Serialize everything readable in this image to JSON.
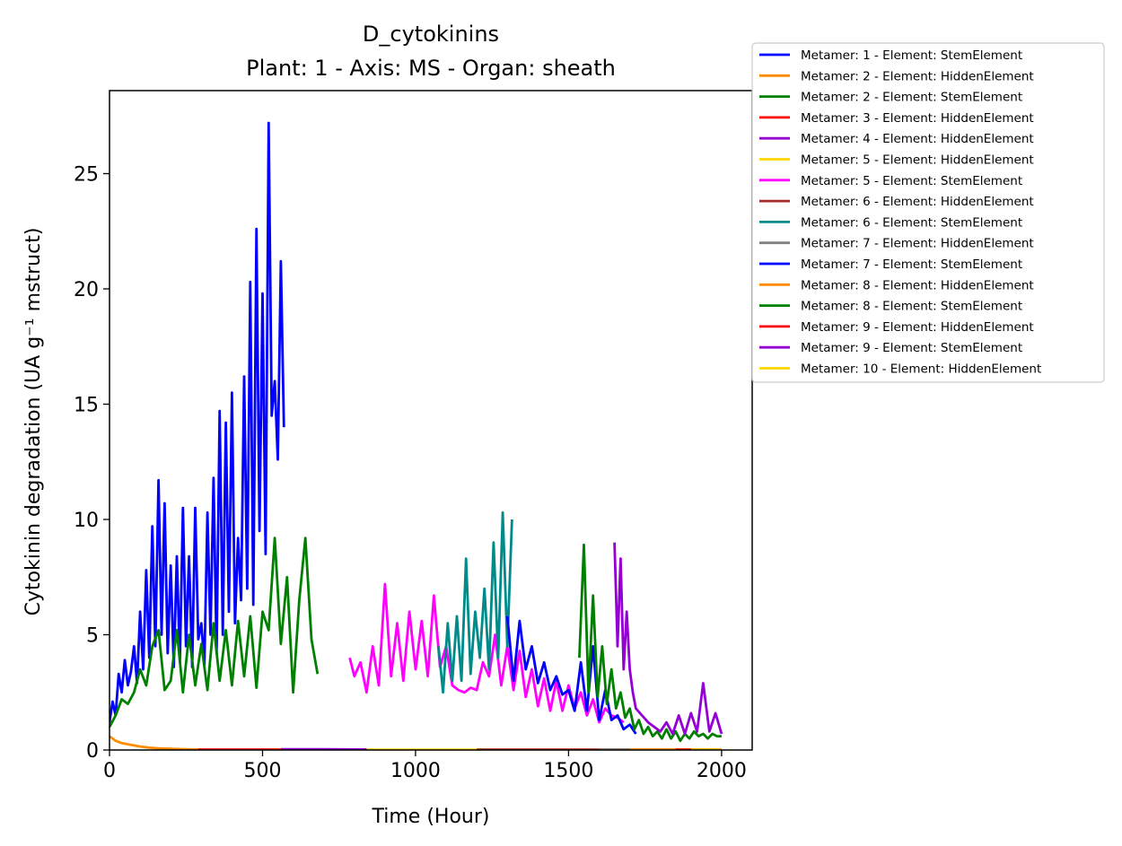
{
  "chart_data": {
    "type": "line",
    "title": "D_cytokinins",
    "subtitle": "Plant: 1 - Axis: MS - Organ: sheath",
    "xlabel": "Time (Hour)",
    "ylabel": "Cytokinin degradation (UA g⁻¹ mstruct)",
    "xlim": [
      0,
      2100
    ],
    "ylim": [
      0,
      28.6
    ],
    "xticks": [
      0,
      500,
      1000,
      1500,
      2000
    ],
    "yticks": [
      0,
      5,
      10,
      15,
      20,
      25
    ],
    "xtick_labels": [
      "0",
      "500",
      "1000",
      "1500",
      "2000"
    ],
    "ytick_labels": [
      "0",
      "5",
      "10",
      "15",
      "20",
      "25"
    ],
    "grid": false,
    "legend_position": "outside-right-top",
    "series": [
      {
        "name": "Metamer: 1 - Element: StemElement",
        "color": "#0000ff",
        "x": [
          0,
          10,
          20,
          30,
          40,
          50,
          60,
          70,
          80,
          90,
          100,
          110,
          120,
          130,
          140,
          150,
          160,
          170,
          180,
          190,
          200,
          210,
          220,
          230,
          240,
          250,
          260,
          270,
          280,
          290,
          300,
          310,
          320,
          330,
          340,
          350,
          360,
          370,
          380,
          390,
          400,
          410,
          420,
          430,
          440,
          450,
          460,
          470,
          480,
          490,
          500,
          510,
          520,
          530,
          540,
          550,
          560,
          570
        ],
        "y": [
          1.2,
          2.1,
          1.5,
          3.3,
          2.5,
          3.9,
          2.8,
          3.4,
          4.5,
          2.9,
          6.0,
          3.5,
          7.8,
          4.0,
          9.7,
          4.5,
          11.7,
          5.0,
          10.7,
          4.2,
          8.0,
          3.6,
          8.4,
          3.8,
          10.5,
          4.5,
          8.4,
          3.6,
          10.5,
          4.8,
          5.5,
          3.7,
          10.3,
          5.0,
          11.8,
          4.2,
          14.7,
          5.0,
          14.2,
          6.0,
          15.5,
          5.5,
          9.2,
          6.5,
          16.2,
          7.0,
          20.3,
          6.3,
          22.6,
          9.5,
          19.8,
          8.5,
          27.2,
          14.5,
          16.0,
          12.6,
          21.2,
          14.0
        ]
      },
      {
        "name": "Metamer: 2 - Element: HiddenElement",
        "color": "#ff8c00",
        "x": [
          0,
          10,
          20,
          40,
          60,
          80,
          100,
          130,
          160,
          200,
          250,
          300
        ],
        "y": [
          0.6,
          0.5,
          0.4,
          0.3,
          0.25,
          0.2,
          0.15,
          0.1,
          0.07,
          0.05,
          0.03,
          0.02
        ]
      },
      {
        "name": "Metamer: 2 - Element: StemElement",
        "color": "#008000",
        "x": [
          0,
          20,
          40,
          60,
          80,
          100,
          120,
          140,
          160,
          180,
          200,
          220,
          240,
          260,
          280,
          300,
          320,
          340,
          360,
          380,
          400,
          420,
          440,
          460,
          480,
          500,
          520,
          540,
          560,
          580,
          600,
          620,
          640,
          660,
          680
        ],
        "y": [
          1.0,
          1.5,
          2.2,
          2.0,
          2.5,
          3.5,
          2.8,
          4.5,
          5.2,
          2.6,
          3.0,
          5.2,
          2.5,
          5.0,
          2.8,
          4.6,
          2.6,
          5.5,
          3.0,
          5.2,
          2.8,
          5.6,
          3.2,
          5.8,
          2.7,
          6.0,
          5.2,
          9.2,
          4.6,
          7.5,
          2.5,
          6.5,
          9.2,
          4.8,
          3.3
        ]
      },
      {
        "name": "Metamer: 3 - Element: HiddenElement",
        "color": "#ff0000",
        "x": [
          290,
          500,
          700,
          840
        ],
        "y": [
          0.02,
          0.02,
          0.02,
          0.02
        ]
      },
      {
        "name": "Metamer: 4 - Element: HiddenElement",
        "color": "#9400d3",
        "x": [
          560,
          700,
          840
        ],
        "y": [
          0.03,
          0.03,
          0.02
        ]
      },
      {
        "name": "Metamer: 5 - Element: HiddenElement",
        "color": "#ffd700",
        "x": [
          840,
          1200,
          1700,
          2000
        ],
        "y": [
          0.01,
          0.01,
          0.01,
          0.01
        ]
      },
      {
        "name": "Metamer: 5 - Element: StemElement",
        "color": "#ff00ff",
        "x": [
          785,
          800,
          820,
          840,
          860,
          880,
          900,
          920,
          940,
          960,
          980,
          1000,
          1020,
          1040,
          1060,
          1080,
          1100,
          1120,
          1140,
          1160,
          1180,
          1200,
          1220,
          1240,
          1260,
          1280,
          1300,
          1320,
          1340,
          1360,
          1380,
          1400,
          1420,
          1440,
          1460,
          1480,
          1500,
          1520,
          1540,
          1560,
          1580,
          1600,
          1620,
          1640,
          1660,
          1680
        ],
        "y": [
          4.0,
          3.2,
          3.8,
          2.5,
          4.5,
          2.8,
          7.2,
          3.2,
          5.5,
          3.0,
          6.0,
          3.5,
          5.6,
          3.2,
          6.7,
          3.6,
          4.5,
          2.8,
          2.6,
          2.5,
          2.7,
          2.6,
          3.8,
          3.2,
          5.0,
          2.8,
          4.5,
          2.6,
          4.3,
          2.3,
          3.5,
          1.9,
          3.1,
          1.7,
          3.0,
          1.7,
          2.8,
          1.8,
          2.5,
          1.5,
          2.2,
          1.2,
          1.8,
          1.5,
          1.4,
          1.2
        ]
      },
      {
        "name": "Metamer: 6 - Element: HiddenElement",
        "color": "#a52a2a",
        "x": [
          1200,
          1600,
          1700
        ],
        "y": [
          0.01,
          0.01,
          0.01
        ]
      },
      {
        "name": "Metamer: 6 - Element: StemElement",
        "color": "#008b8b",
        "x": [
          1075,
          1090,
          1105,
          1120,
          1135,
          1150,
          1165,
          1180,
          1195,
          1210,
          1225,
          1240,
          1255,
          1270,
          1285,
          1300,
          1315
        ],
        "y": [
          4.5,
          2.5,
          5.5,
          3.0,
          5.8,
          3.0,
          8.3,
          3.3,
          6.0,
          4.0,
          7.0,
          3.5,
          9.0,
          4.0,
          10.3,
          4.5,
          10.0
        ]
      },
      {
        "name": "Metamer: 7 - Element: HiddenElement",
        "color": "#808080",
        "x": [
          1600,
          1800,
          2000
        ],
        "y": [
          0.01,
          0.01,
          0.01
        ]
      },
      {
        "name": "Metamer: 7 - Element: StemElement",
        "color": "#0000ff",
        "x": [
          1300,
          1320,
          1340,
          1360,
          1380,
          1400,
          1420,
          1440,
          1460,
          1480,
          1500,
          1520,
          1540,
          1560,
          1580,
          1600,
          1620,
          1640,
          1660,
          1680,
          1700,
          1720
        ],
        "y": [
          5.8,
          3.0,
          5.6,
          3.5,
          4.5,
          2.9,
          3.8,
          2.6,
          3.2,
          2.4,
          2.6,
          1.7,
          3.8,
          1.7,
          4.5,
          1.3,
          2.6,
          1.3,
          1.5,
          0.9,
          1.1,
          0.7
        ]
      },
      {
        "name": "Metamer: 8 - Element: HiddenElement",
        "color": "#ff8c00",
        "x": [
          1700,
          1850,
          2000
        ],
        "y": [
          0.01,
          0.01,
          0.01
        ]
      },
      {
        "name": "Metamer: 8 - Element: StemElement",
        "color": "#008000",
        "x": [
          1535,
          1550,
          1565,
          1580,
          1595,
          1610,
          1625,
          1640,
          1655,
          1670,
          1685,
          1700,
          1715,
          1730,
          1745,
          1760,
          1775,
          1790,
          1805,
          1820,
          1835,
          1850,
          1865,
          1880,
          1895,
          1910,
          1925,
          1940,
          1955,
          1970,
          1985,
          2000
        ],
        "y": [
          4.0,
          8.9,
          2.5,
          6.7,
          2.3,
          4.5,
          2.0,
          3.5,
          1.8,
          2.5,
          1.4,
          1.8,
          0.9,
          1.3,
          0.7,
          1.0,
          0.6,
          0.8,
          0.5,
          0.9,
          0.5,
          0.8,
          0.4,
          0.7,
          0.5,
          0.8,
          0.6,
          0.7,
          0.5,
          0.7,
          0.6,
          0.6
        ]
      },
      {
        "name": "Metamer: 9 - Element: HiddenElement",
        "color": "#ff0000",
        "x": [
          1850,
          2000
        ],
        "y": [
          0.01,
          0.01
        ]
      },
      {
        "name": "Metamer: 9 - Element: StemElement",
        "color": "#9400d3",
        "x": [
          1650,
          1660,
          1670,
          1680,
          1690,
          1700,
          1710,
          1720,
          1740,
          1760,
          1780,
          1800,
          1820,
          1840,
          1860,
          1880,
          1900,
          1920,
          1940,
          1960,
          1980,
          2000
        ],
        "y": [
          9.0,
          4.5,
          8.3,
          3.5,
          6.0,
          3.5,
          2.5,
          1.8,
          1.5,
          1.2,
          1.0,
          0.8,
          1.2,
          0.7,
          1.5,
          0.7,
          1.6,
          0.8,
          2.9,
          0.8,
          1.6,
          0.7
        ]
      },
      {
        "name": "Metamer: 10 - Element: HiddenElement",
        "color": "#ffd700",
        "x": [
          1900,
          2000
        ],
        "y": [
          0.01,
          0.01
        ]
      }
    ]
  }
}
